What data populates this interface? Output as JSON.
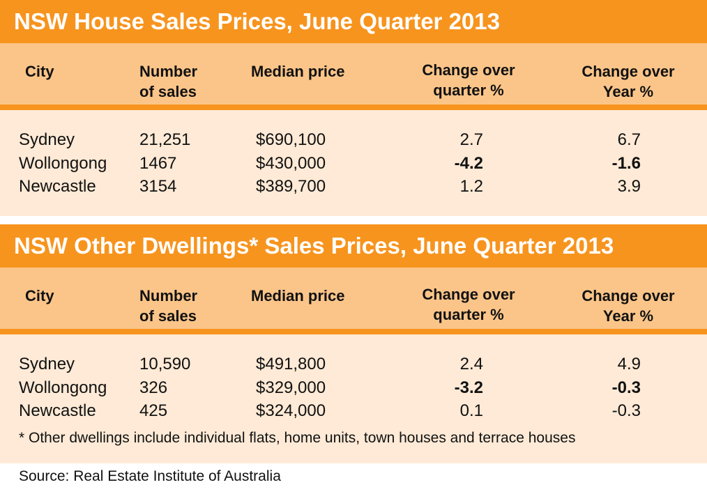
{
  "colors": {
    "accent": "#F7941E",
    "header_bg": "#FBC589",
    "body_bg": "#FEEAD6"
  },
  "headers": {
    "city": "City",
    "sales_1": "Number",
    "sales_2": "of sales",
    "median": "Median price",
    "quarter_1": "Change over",
    "quarter_2": "quarter %",
    "year_1": "Change over",
    "year_2": "Year %"
  },
  "tables": [
    {
      "title": "NSW House Sales Prices, June Quarter 2013",
      "rows": [
        {
          "city": "Sydney",
          "sales": "21,251",
          "median": "$690,100",
          "quarter": "2.7",
          "year": "6.7",
          "q_bold": false,
          "y_bold": false
        },
        {
          "city": "Wollongong",
          "sales": "1467",
          "median": "$430,000",
          "quarter": "-4.2",
          "year": "-1.6",
          "q_bold": true,
          "y_bold": true
        },
        {
          "city": "Newcastle",
          "sales": "3154",
          "median": "$389,700",
          "quarter": "1.2",
          "year": "3.9",
          "q_bold": false,
          "y_bold": false
        }
      ]
    },
    {
      "title": "NSW Other Dwellings* Sales Prices, June Quarter 2013",
      "rows": [
        {
          "city": "Sydney",
          "sales": "10,590",
          "median": "$491,800",
          "quarter": "2.4",
          "year": "4.9",
          "q_bold": false,
          "y_bold": false
        },
        {
          "city": "Wollongong",
          "sales": "326",
          "median": "$329,000",
          "quarter": "-3.2",
          "year": "-0.3",
          "q_bold": true,
          "y_bold": true
        },
        {
          "city": "Newcastle",
          "sales": "425",
          "median": "$324,000",
          "quarter": "0.1",
          "year": "-0.3",
          "q_bold": false,
          "y_bold": false
        }
      ],
      "footnote": "* Other dwellings include individual flats, home units, town houses and terrace houses"
    }
  ],
  "source": "Source: Real Estate Institute of Australia"
}
